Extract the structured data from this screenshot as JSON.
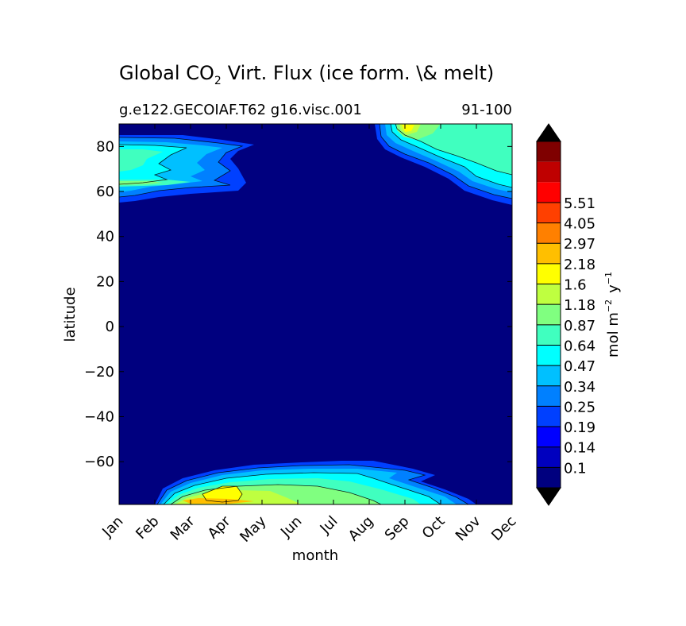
{
  "chart_data": {
    "type": "heatmap",
    "title_main": "Global CO",
    "title_sub": "2",
    "title_rest": "Virt. Flux (ice form. \\& melt)",
    "subtitle_left": "g.e122.GECOIAF.T62 g16.visc.001",
    "subtitle_right": "91-100",
    "xlabel": "month",
    "ylabel": "latitude",
    "x_categories": [
      "Jan",
      "Feb",
      "Mar",
      "Apr",
      "May",
      "Jun",
      "Jul",
      "Aug",
      "Sep",
      "Oct",
      "Nov",
      "Dec"
    ],
    "y_ticks": [
      "80",
      "60",
      "40",
      "20",
      "0",
      "−20",
      "−40",
      "−60"
    ],
    "y_tick_values": [
      80,
      60,
      40,
      20,
      0,
      -20,
      -40,
      -60
    ],
    "ylim": [
      -79,
      90
    ],
    "colorbar": {
      "label_a": "mol m",
      "label_sup1": "−2",
      "label_b": "y",
      "label_sup2": "−1",
      "levels": [
        "0.1",
        "0.14",
        "0.19",
        "0.25",
        "0.34",
        "0.47",
        "0.64",
        "0.87",
        "1.18",
        "1.6",
        "2.18",
        "2.97",
        "4.05",
        "5.51"
      ],
      "colors": [
        "#00007f",
        "#0000bf",
        "#0000ff",
        "#0040ff",
        "#0080ff",
        "#00c0ff",
        "#00ffff",
        "#40ffbf",
        "#80ff80",
        "#bfff40",
        "#ffff00",
        "#ffbf00",
        "#ff8000",
        "#ff4000",
        "#ff0000",
        "#bf0000",
        "#7f0000"
      ],
      "under_color": "#000000",
      "over_color": "#000000"
    }
  }
}
